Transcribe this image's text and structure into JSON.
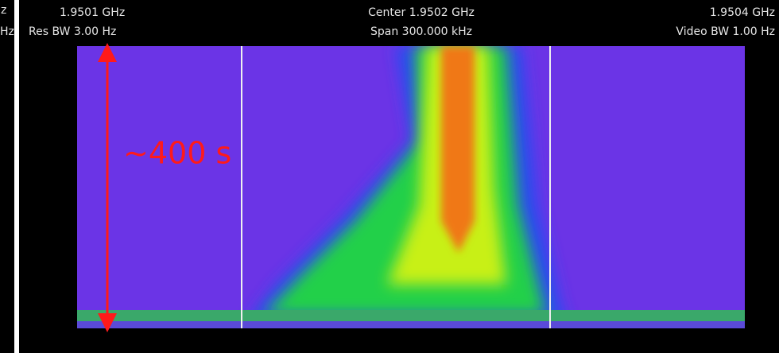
{
  "edge_labels": [
    "z",
    "Hz"
  ],
  "header": {
    "start_freq": "1.9501 GHz",
    "res_bw": "Res BW 3.00  Hz",
    "center": "Center 1.9502 GHz",
    "span": "Span 300.000 kHz",
    "stop_freq": "1.9504 GHz",
    "video_bw": "Video BW 1.00  Hz"
  },
  "annotation": "~400 s"
}
